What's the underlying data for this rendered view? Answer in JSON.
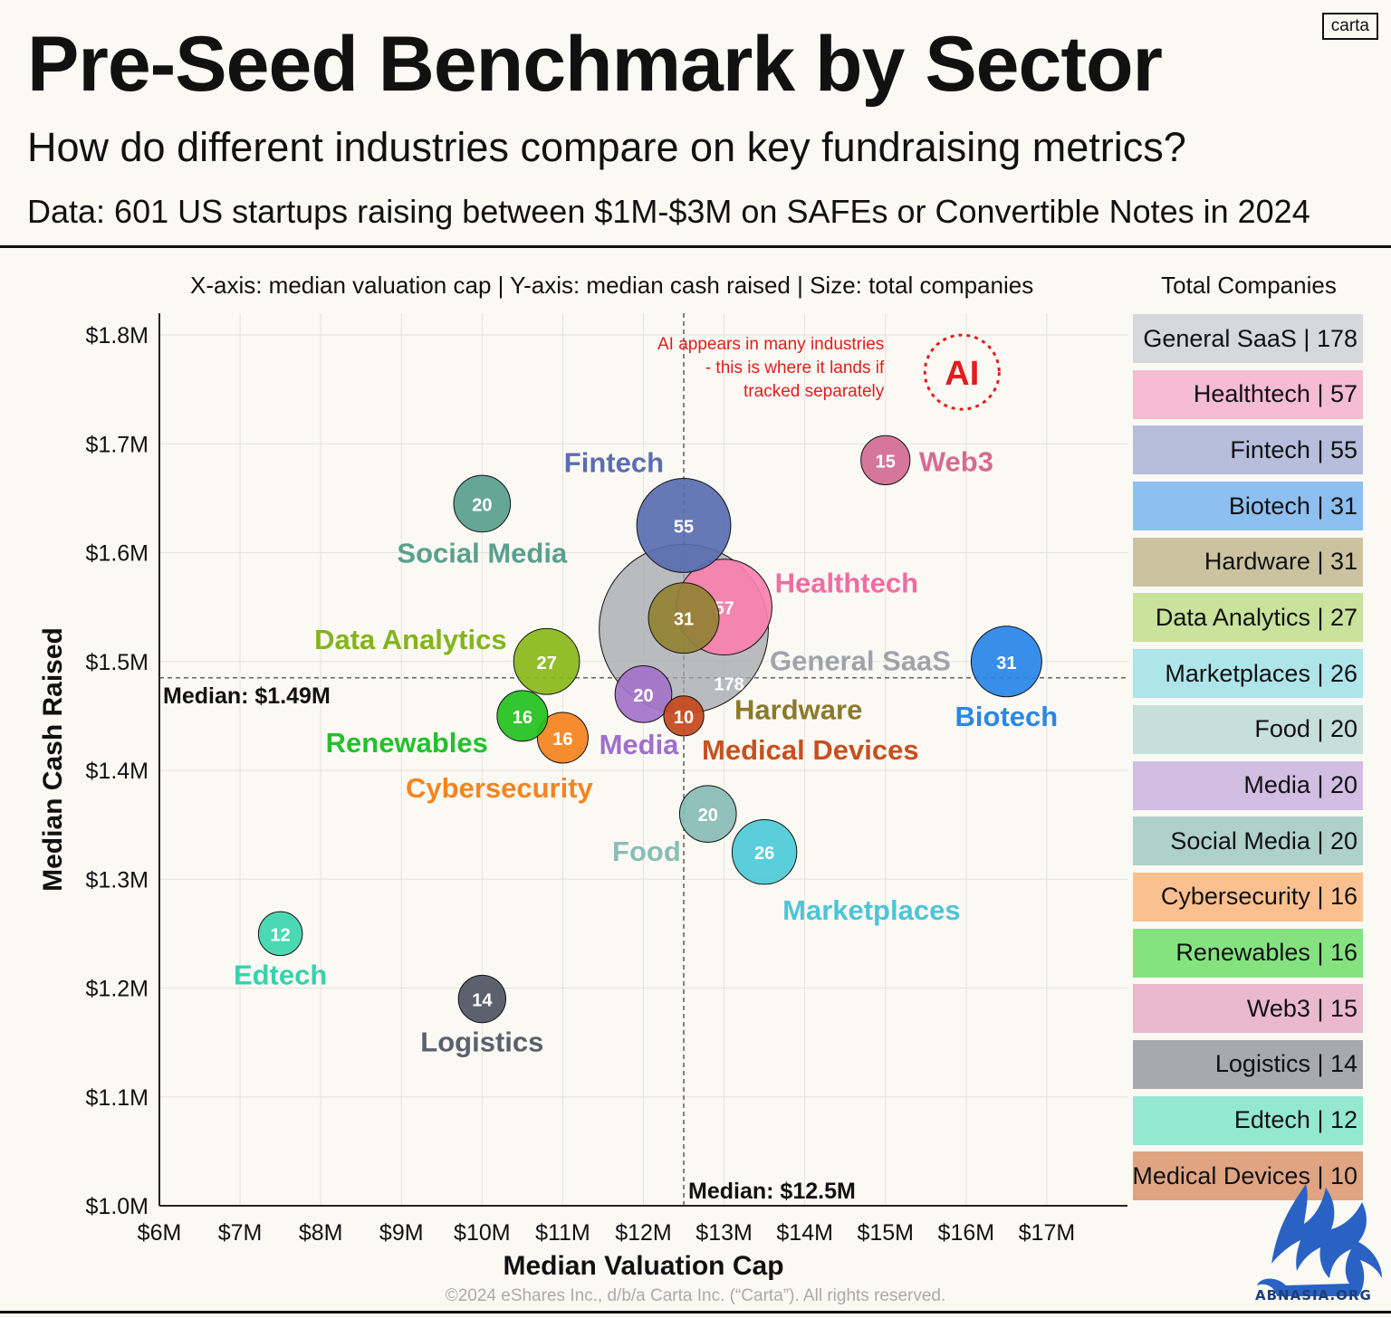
{
  "header": {
    "title": "Pre-Seed Benchmark by Sector",
    "subtitle": "How do different industries compare on key fundraising metrics?",
    "data_note": "Data: 601 US startups raising between $1M-$3M on SAFEs or Convertible Notes in 2024",
    "brand": "carta"
  },
  "axes_note": "X-axis: median valuation cap | Y-axis: median cash raised | Size: total companies",
  "legend_title": "Total Companies",
  "footer": {
    "copyright": "©2024 eShares Inc., d/b/a Carta Inc. (“Carta”). All rights reserved.",
    "watermark": "ABNASIA.ORG"
  },
  "chart_data": {
    "type": "scatter",
    "title": "Pre-Seed Benchmark by Sector",
    "xlabel": "Median Valuation Cap",
    "ylabel": "Median Cash Raised",
    "xlim": [
      6.0,
      18.0
    ],
    "ylim": [
      1.0,
      1.82
    ],
    "x_ticks": [
      {
        "value": 6,
        "label": "$6M"
      },
      {
        "value": 7,
        "label": "$7M"
      },
      {
        "value": 8,
        "label": "$8M"
      },
      {
        "value": 9,
        "label": "$9M"
      },
      {
        "value": 10,
        "label": "$10M"
      },
      {
        "value": 11,
        "label": "$11M"
      },
      {
        "value": 12,
        "label": "$12M"
      },
      {
        "value": 13,
        "label": "$13M"
      },
      {
        "value": 14,
        "label": "$14M"
      },
      {
        "value": 15,
        "label": "$15M"
      },
      {
        "value": 16,
        "label": "$16M"
      },
      {
        "value": 17,
        "label": "$17M"
      }
    ],
    "y_ticks": [
      {
        "value": 1.0,
        "label": "$1.0M"
      },
      {
        "value": 1.1,
        "label": "$1.1M"
      },
      {
        "value": 1.2,
        "label": "$1.2M"
      },
      {
        "value": 1.3,
        "label": "$1.3M"
      },
      {
        "value": 1.4,
        "label": "$1.4M"
      },
      {
        "value": 1.5,
        "label": "$1.5M"
      },
      {
        "value": 1.6,
        "label": "$1.6M"
      },
      {
        "value": 1.7,
        "label": "$1.7M"
      },
      {
        "value": 1.8,
        "label": "$1.8M"
      }
    ],
    "median_x": {
      "value": 12.5,
      "label": "Median: $12.5M"
    },
    "median_y": {
      "value": 1.485,
      "label": "Median: $1.49M"
    },
    "annotation": {
      "lines": [
        "AI appears in many industries",
        "- this is where it lands if",
        "tracked separately"
      ],
      "badge": "AI",
      "x": 15.5,
      "y": 1.77
    },
    "points": [
      {
        "name": "General SaaS",
        "x": 12.5,
        "y": 1.53,
        "count": 178,
        "color": "#a3a6ad",
        "label_color": "#a0a3aa",
        "label_pos": "right"
      },
      {
        "name": "Fintech",
        "x": 12.5,
        "y": 1.625,
        "count": 55,
        "color": "#5a6db0",
        "label_color": "#5a6db0",
        "label_pos": "above-left"
      },
      {
        "name": "Healthtech",
        "x": 13.0,
        "y": 1.55,
        "count": 57,
        "color": "#f780ad",
        "label_color": "#f26ba2",
        "label_pos": "right"
      },
      {
        "name": "Hardware",
        "x": 12.5,
        "y": 1.54,
        "count": 31,
        "color": "#938234",
        "label_color": "#8c7a2c",
        "label_pos": "below-right"
      },
      {
        "name": "Biotech",
        "x": 16.5,
        "y": 1.5,
        "count": 31,
        "color": "#2884e8",
        "label_color": "#2c87e3",
        "label_pos": "below"
      },
      {
        "name": "Data Analytics",
        "x": 10.8,
        "y": 1.5,
        "count": 27,
        "color": "#89b91a",
        "label_color": "#84b41d",
        "label_pos": "left-above"
      },
      {
        "name": "Marketplaces",
        "x": 13.5,
        "y": 1.325,
        "count": 26,
        "color": "#4ccad8",
        "label_color": "#4ec4d7",
        "label_pos": "below-right"
      },
      {
        "name": "Food",
        "x": 12.8,
        "y": 1.36,
        "count": 20,
        "color": "#87bcb4",
        "label_color": "#89bdb5",
        "label_pos": "left-below"
      },
      {
        "name": "Media",
        "x": 12.0,
        "y": 1.47,
        "count": 20,
        "color": "#a373c9",
        "label_color": "#a06fcd",
        "label_pos": "below"
      },
      {
        "name": "Social Media",
        "x": 10.0,
        "y": 1.645,
        "count": 20,
        "color": "#599e8e",
        "label_color": "#5a9f8f",
        "label_pos": "below"
      },
      {
        "name": "Cybersecurity",
        "x": 11.0,
        "y": 1.43,
        "count": 16,
        "color": "#f5821c",
        "label_color": "#f5841f",
        "label_pos": "below-left"
      },
      {
        "name": "Renewables",
        "x": 10.5,
        "y": 1.45,
        "count": 16,
        "color": "#22c11d",
        "label_color": "#24c02b",
        "label_pos": "left-below"
      },
      {
        "name": "Web3",
        "x": 15.0,
        "y": 1.685,
        "count": 15,
        "color": "#d46a92",
        "label_color": "#d66a93",
        "label_pos": "right"
      },
      {
        "name": "Logistics",
        "x": 10.0,
        "y": 1.19,
        "count": 14,
        "color": "#4e5462",
        "label_color": "#5b606b",
        "label_pos": "below"
      },
      {
        "name": "Edtech",
        "x": 7.5,
        "y": 1.25,
        "count": 12,
        "color": "#3cd6ad",
        "label_color": "#37d1ab",
        "label_pos": "below"
      },
      {
        "name": "Medical Devices",
        "x": 12.5,
        "y": 1.45,
        "count": 10,
        "color": "#c6481e",
        "label_color": "#c7501d",
        "label_pos": "below-right"
      }
    ],
    "legend": [
      {
        "label": "General SaaS | 178",
        "color": "#d6d8db"
      },
      {
        "label": "Healthtech | 57",
        "color": "#f6bcd2"
      },
      {
        "label": "Fintech | 55",
        "color": "#b6bedc"
      },
      {
        "label": "Biotech | 31",
        "color": "#8ebff1"
      },
      {
        "label": "Hardware | 31",
        "color": "#cbc3a0"
      },
      {
        "label": "Data Analytics | 27",
        "color": "#c9e29c"
      },
      {
        "label": "Marketplaces | 26",
        "color": "#ade5ea"
      },
      {
        "label": "Food | 20",
        "color": "#c6dfdb"
      },
      {
        "label": "Media | 20",
        "color": "#d2bde3"
      },
      {
        "label": "Social Media | 20",
        "color": "#aed1c9"
      },
      {
        "label": "Cybersecurity | 16",
        "color": "#fbc08f"
      },
      {
        "label": "Renewables | 16",
        "color": "#85e37f"
      },
      {
        "label": "Web3 | 15",
        "color": "#eab9cc"
      },
      {
        "label": "Logistics | 14",
        "color": "#a6a9ae"
      },
      {
        "label": "Edtech | 12",
        "color": "#94e8cf"
      },
      {
        "label": "Medical Devices | 10",
        "color": "#e0a482"
      }
    ]
  }
}
